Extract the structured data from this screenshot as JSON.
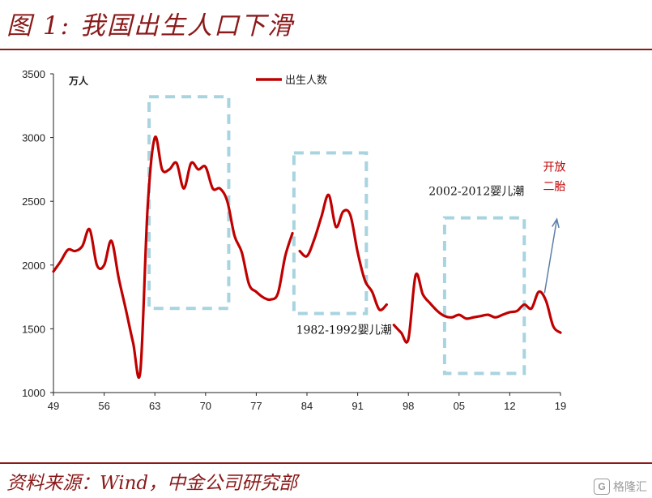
{
  "figure": {
    "title": "图 1:  我国出生人口下滑",
    "source": "资料来源：Wind，中金公司研究部",
    "watermark": {
      "icon_char": "G",
      "text": "格隆汇"
    }
  },
  "colors": {
    "brand": "#8b1a1a",
    "series": "#c00000",
    "box": "#a8d4e0",
    "arrow": "#5b7fa8",
    "annotation_red": "#c00000"
  },
  "chart_data": {
    "type": "line",
    "unit_label": "万人",
    "legend": "出生人数",
    "legend_position": "top-center",
    "xlim": [
      1949,
      2019
    ],
    "ylim": [
      1000,
      3500
    ],
    "x_ticks": [
      {
        "value": 1949,
        "label": "49"
      },
      {
        "value": 1956,
        "label": "56"
      },
      {
        "value": 1963,
        "label": "63"
      },
      {
        "value": 1970,
        "label": "70"
      },
      {
        "value": 1977,
        "label": "77"
      },
      {
        "value": 1984,
        "label": "84"
      },
      {
        "value": 1991,
        "label": "91"
      },
      {
        "value": 1998,
        "label": "98"
      },
      {
        "value": 2005,
        "label": "05"
      },
      {
        "value": 2012,
        "label": "12"
      },
      {
        "value": 2019,
        "label": "19"
      }
    ],
    "y_ticks": [
      1000,
      1500,
      2000,
      2500,
      3000,
      3500
    ],
    "series": [
      {
        "name": "出生人数",
        "segments": [
          {
            "x": [
              1949,
              1950,
              1951,
              1952,
              1953,
              1954,
              1955,
              1956,
              1957,
              1958,
              1959,
              1960,
              1961,
              1962,
              1963,
              1964,
              1965,
              1966,
              1967,
              1968,
              1969,
              1970,
              1971,
              1972,
              1973,
              1974,
              1975,
              1976,
              1977,
              1978,
              1979,
              1980,
              1981,
              1982
            ],
            "y": [
              1950,
              2030,
              2120,
              2110,
              2150,
              2280,
              2000,
              2000,
              2190,
              1900,
              1650,
              1390,
              1170,
              2450,
              3000,
              2750,
              2750,
              2800,
              2600,
              2800,
              2750,
              2770,
              2600,
              2600,
              2500,
              2230,
              2100,
              1850,
              1790,
              1745,
              1730,
              1780,
              2070,
              2250
            ]
          },
          {
            "x": [
              1983,
              1984,
              1985,
              1986,
              1987,
              1988,
              1989,
              1990,
              1991,
              1992,
              1993,
              1994,
              1995
            ],
            "y": [
              2110,
              2070,
              2200,
              2380,
              2550,
              2300,
              2420,
              2390,
              2100,
              1880,
              1790,
              1650,
              1690
            ]
          },
          {
            "x": [
              1996,
              1997,
              1998,
              1999,
              2000,
              2001,
              2002,
              2003,
              2004,
              2005,
              2006,
              2007,
              2008,
              2009,
              2010,
              2011,
              2012,
              2013,
              2014,
              2015,
              2016,
              2017,
              2018,
              2019
            ],
            "y": [
              1530,
              1470,
              1420,
              1920,
              1770,
              1700,
              1640,
              1600,
              1590,
              1610,
              1580,
              1590,
              1600,
              1610,
              1590,
              1610,
              1630,
              1640,
              1690,
              1660,
              1790,
              1720,
              1520,
              1470
            ]
          }
        ]
      }
    ],
    "annotations": [
      {
        "text": "1982-1992婴儿潮",
        "type": "box",
        "x_range": [
          1982.2,
          1992.2
        ],
        "y_range": [
          1620,
          2880
        ]
      },
      {
        "text": "2002-2012婴儿潮",
        "type": "box",
        "x_range": [
          2003,
          2014
        ],
        "y_range": [
          1150,
          2370
        ]
      },
      {
        "type": "box",
        "x_range": [
          1962.2,
          1973.2
        ],
        "y_range": [
          1660,
          3320
        ]
      },
      {
        "text_lines": [
          "开放",
          "二胎"
        ],
        "type": "arrow",
        "from": [
          2016.8,
          1780
        ],
        "to": [
          2018.5,
          2360
        ]
      }
    ]
  }
}
